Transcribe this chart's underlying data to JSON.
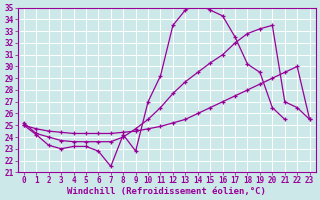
{
  "xlabel": "Windchill (Refroidissement éolien,°C)",
  "background_color": "#cce8e8",
  "grid_color": "#ffffff",
  "line_color": "#990099",
  "xlim": [
    -0.5,
    23.5
  ],
  "ylim": [
    21,
    35
  ],
  "xticks": [
    0,
    1,
    2,
    3,
    4,
    5,
    6,
    7,
    8,
    9,
    10,
    11,
    12,
    13,
    14,
    15,
    16,
    17,
    18,
    19,
    20,
    21,
    22,
    23
  ],
  "yticks": [
    21,
    22,
    23,
    24,
    25,
    26,
    27,
    28,
    29,
    30,
    31,
    32,
    33,
    34,
    35
  ],
  "line1_x": [
    0,
    1,
    2,
    3,
    4,
    5,
    6,
    7,
    8,
    9,
    10,
    11,
    12,
    13,
    14,
    15,
    16,
    17,
    18,
    19,
    20,
    21
  ],
  "line1_y": [
    25.0,
    24.2,
    23.3,
    23.0,
    23.2,
    23.2,
    22.8,
    21.5,
    24.2,
    22.8,
    27.0,
    29.2,
    33.5,
    34.8,
    35.3,
    34.8,
    34.3,
    32.5,
    30.2,
    29.5,
    26.5,
    25.5
  ],
  "line2_x": [
    0,
    1,
    2,
    3,
    4,
    5,
    6,
    7,
    8,
    9,
    10,
    11,
    12,
    13,
    14,
    15,
    16,
    17,
    18,
    19,
    20,
    21,
    22,
    23
  ],
  "line2_y": [
    25.2,
    24.3,
    24.0,
    23.7,
    23.6,
    23.6,
    23.6,
    23.6,
    24.0,
    24.7,
    25.5,
    26.5,
    27.7,
    28.7,
    29.5,
    30.3,
    31.0,
    32.0,
    32.8,
    33.2,
    33.5,
    27.0,
    26.5,
    25.5
  ],
  "line3_x": [
    0,
    1,
    2,
    3,
    4,
    5,
    6,
    7,
    8,
    9,
    10,
    11,
    12,
    13,
    14,
    15,
    16,
    17,
    18,
    19,
    20,
    21,
    22,
    23
  ],
  "line3_y": [
    25.0,
    24.7,
    24.5,
    24.4,
    24.3,
    24.3,
    24.3,
    24.3,
    24.4,
    24.5,
    24.7,
    24.9,
    25.2,
    25.5,
    26.0,
    26.5,
    27.0,
    27.5,
    28.0,
    28.5,
    29.0,
    29.5,
    30.0,
    25.5
  ],
  "tick_fontsize": 5.5,
  "label_fontsize": 6.5,
  "font_family": "monospace"
}
